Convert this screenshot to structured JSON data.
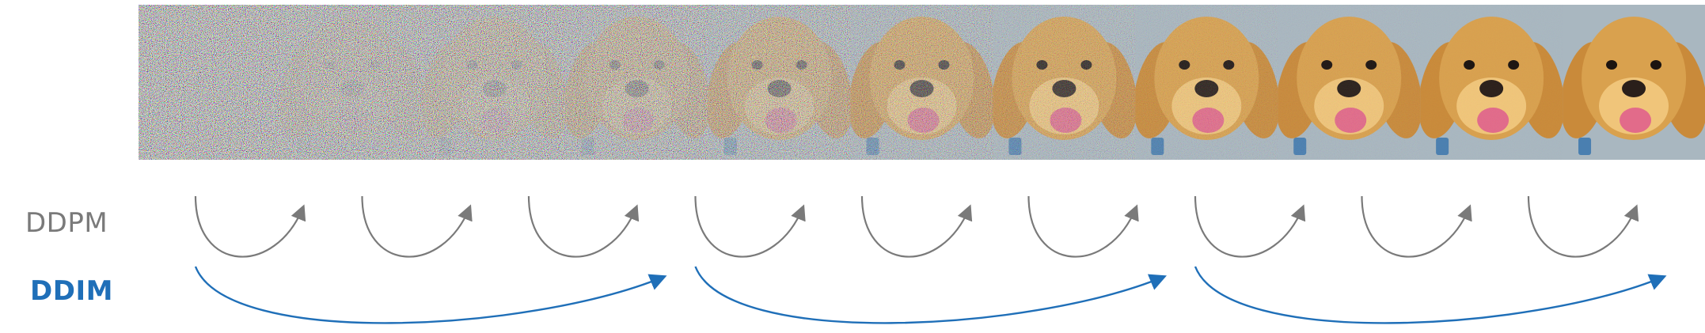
{
  "labels": {
    "ddpm": "DDPM",
    "ddim": "DDIM"
  },
  "colors": {
    "ddpm": "#7a7a7a",
    "ddim": "#1f6fb8",
    "fur": "#d9a14e",
    "fur_light": "#f0c57a",
    "nose": "#2a1f1a",
    "tongue": "#e26b8a",
    "background": "#a9b7c0"
  },
  "diagram": {
    "frames": [
      {
        "noise": 1.0
      },
      {
        "noise": 0.95
      },
      {
        "noise": 0.9
      },
      {
        "noise": 0.82
      },
      {
        "noise": 0.68
      },
      {
        "noise": 0.48
      },
      {
        "noise": 0.28
      },
      {
        "noise": 0.12
      },
      {
        "noise": 0.05
      },
      {
        "noise": 0.02
      },
      {
        "noise": 0.0
      }
    ],
    "ddpm_step_count": 9,
    "ddim_step_count": 3,
    "ddim_group_size": 3
  }
}
